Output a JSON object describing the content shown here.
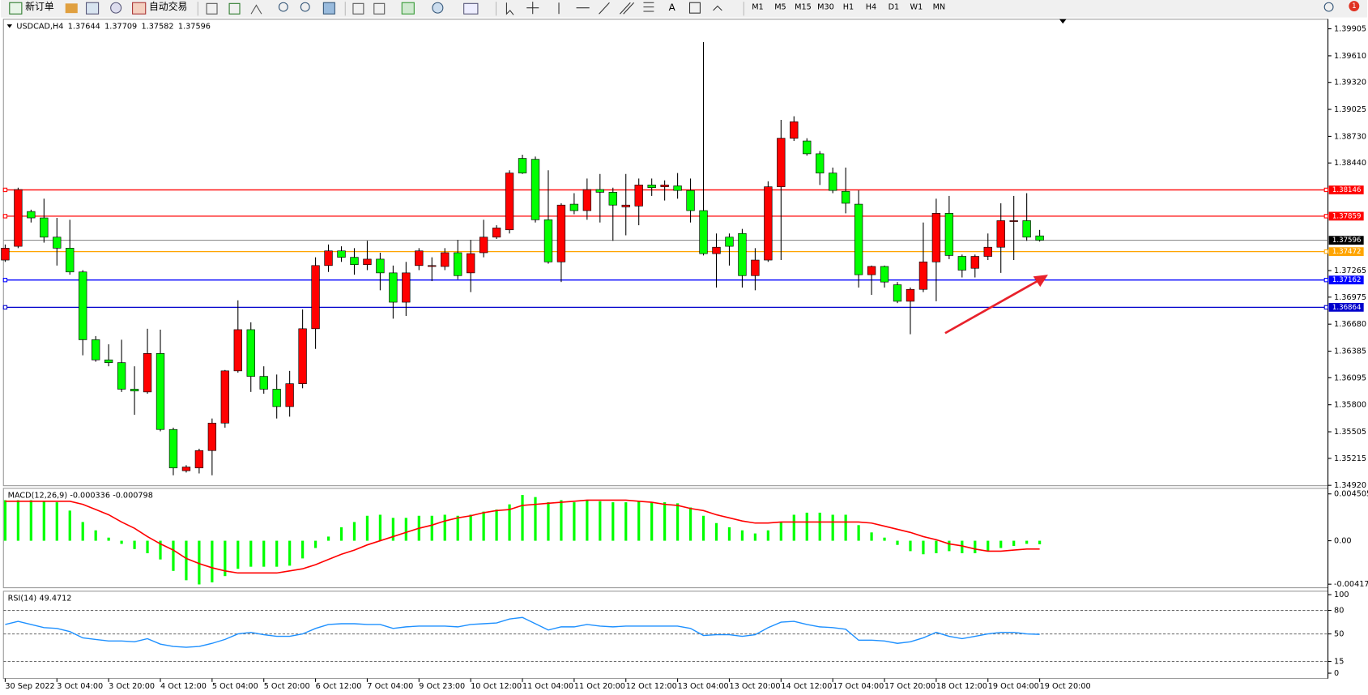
{
  "toolbar": {
    "buttons": [
      "新订单",
      "自动交易"
    ],
    "timeframes": [
      "M1",
      "M5",
      "M15",
      "M30",
      "H1",
      "H4",
      "D1",
      "W1",
      "MN"
    ],
    "alerts": 1
  },
  "chart_data": [
    {
      "type": "candlestick",
      "title": "USDCAD,H4",
      "up_color": "#ff0000",
      "down_color": "#00ff00",
      "categories": [
        "30 Sep 2022",
        null,
        null,
        null,
        "3 Oct 04:00",
        null,
        null,
        null,
        "3 Oct 20:00",
        null,
        null,
        null,
        "4 Oct 12:00",
        null,
        null,
        null,
        "5 Oct 04:00",
        null,
        null,
        null,
        "5 Oct 20:00",
        null,
        null,
        null,
        "6 Oct 12:00",
        null,
        null,
        null,
        "7 Oct 04:00",
        null,
        null,
        null,
        "9 Oct 23:00",
        null,
        null,
        null,
        "10 Oct 12:00",
        null,
        null,
        null,
        "11 Oct 04:00",
        null,
        null,
        null,
        "11 Oct 20:00",
        null,
        null,
        null,
        "12 Oct 12:00",
        null,
        null,
        null,
        "13 Oct 04:00",
        null,
        null,
        null,
        "13 Oct 20:00",
        null,
        null,
        null,
        "14 Oct 12:00",
        null,
        null,
        null,
        "17 Oct 04:00",
        null,
        null,
        null,
        "17 Oct 20:00",
        null,
        null,
        null,
        "18 Oct 12:00",
        null,
        null,
        null,
        "19 Oct 04:00",
        null,
        null,
        null,
        "19 Oct 20:00"
      ],
      "candles": [
        [
          1.3738,
          1.3755,
          1.3736,
          1.3751
        ],
        [
          1.3753,
          1.3817,
          1.3751,
          1.3815
        ],
        [
          1.3791,
          1.3793,
          1.3779,
          1.3784
        ],
        [
          1.3784,
          1.3805,
          1.3757,
          1.3763
        ],
        [
          1.3763,
          1.3784,
          1.3732,
          1.3751
        ],
        [
          1.3751,
          1.3782,
          1.3722,
          1.3725
        ],
        [
          1.3725,
          1.3727,
          1.3634,
          1.3651
        ],
        [
          1.3651,
          1.3655,
          1.3627,
          1.3629
        ],
        [
          1.3629,
          1.3646,
          1.3622,
          1.3626
        ],
        [
          1.3626,
          1.3651,
          1.3594,
          1.3597
        ],
        [
          1.3597,
          1.3622,
          1.3569,
          1.3595
        ],
        [
          1.3594,
          1.3663,
          1.3592,
          1.3636
        ],
        [
          1.3636,
          1.3662,
          1.3551,
          1.3553
        ],
        [
          1.3553,
          1.3555,
          1.3503,
          1.3511
        ],
        [
          1.3508,
          1.3514,
          1.3506,
          1.3512
        ],
        [
          1.3511,
          1.3532,
          1.3505,
          1.353
        ],
        [
          1.353,
          1.3565,
          1.3503,
          1.356
        ],
        [
          1.356,
          1.3618,
          1.3555,
          1.3617
        ],
        [
          1.3617,
          1.3694,
          1.3615,
          1.3662
        ],
        [
          1.3662,
          1.367,
          1.3594,
          1.3611
        ],
        [
          1.3611,
          1.3622,
          1.3592,
          1.3597
        ],
        [
          1.3597,
          1.3613,
          1.3565,
          1.3578
        ],
        [
          1.3578,
          1.3617,
          1.3567,
          1.3603
        ],
        [
          1.3603,
          1.3684,
          1.3598,
          1.3663
        ],
        [
          1.3663,
          1.3741,
          1.3641,
          1.3732
        ],
        [
          1.3732,
          1.3755,
          1.3725,
          1.3748
        ],
        [
          1.3748,
          1.3753,
          1.3736,
          1.3741
        ],
        [
          1.3741,
          1.3751,
          1.3722,
          1.3733
        ],
        [
          1.3733,
          1.3759,
          1.3727,
          1.3739
        ],
        [
          1.3739,
          1.3746,
          1.3705,
          1.3724
        ],
        [
          1.3724,
          1.3732,
          1.3674,
          1.3692
        ],
        [
          1.3692,
          1.3736,
          1.3677,
          1.3724
        ],
        [
          1.3732,
          1.3751,
          1.3727,
          1.3748
        ],
        [
          1.3731,
          1.3741,
          1.3715,
          1.3732
        ],
        [
          1.3731,
          1.3751,
          1.3727,
          1.3746
        ],
        [
          1.3746,
          1.376,
          1.3717,
          1.3721
        ],
        [
          1.3724,
          1.376,
          1.3703,
          1.3745
        ],
        [
          1.3746,
          1.3782,
          1.3741,
          1.3763
        ],
        [
          1.3763,
          1.3776,
          1.3761,
          1.3773
        ],
        [
          1.3771,
          1.3836,
          1.3767,
          1.3833
        ],
        [
          1.3849,
          1.3853,
          1.3832,
          1.3833
        ],
        [
          1.3848,
          1.3851,
          1.3779,
          1.3782
        ],
        [
          1.3782,
          1.3836,
          1.3734,
          1.3736
        ],
        [
          1.3736,
          1.38,
          1.3714,
          1.3798
        ],
        [
          1.3799,
          1.3811,
          1.3788,
          1.3792
        ],
        [
          1.3792,
          1.3827,
          1.3782,
          1.3815
        ],
        [
          1.3815,
          1.3832,
          1.3779,
          1.3812
        ],
        [
          1.3812,
          1.3817,
          1.3759,
          1.3798
        ],
        [
          1.3796,
          1.3832,
          1.3765,
          1.3798
        ],
        [
          1.3797,
          1.3827,
          1.3776,
          1.382
        ],
        [
          1.382,
          1.3827,
          1.3808,
          1.3817
        ],
        [
          1.3818,
          1.3825,
          1.3803,
          1.382
        ],
        [
          1.3819,
          1.3833,
          1.3805,
          1.3814
        ],
        [
          1.3814,
          1.3827,
          1.3779,
          1.3792
        ],
        [
          1.3792,
          1.3976,
          1.3743,
          1.3745
        ],
        [
          1.3745,
          1.3767,
          1.3708,
          1.3752
        ],
        [
          1.3763,
          1.3767,
          1.3732,
          1.3753
        ],
        [
          1.3767,
          1.3772,
          1.3708,
          1.3721
        ],
        [
          1.3721,
          1.3751,
          1.3705,
          1.3738
        ],
        [
          1.3738,
          1.3824,
          1.3736,
          1.3818
        ],
        [
          1.3818,
          1.3891,
          1.3738,
          1.3871
        ],
        [
          1.3871,
          1.3895,
          1.3868,
          1.3889
        ],
        [
          1.3868,
          1.3871,
          1.3852,
          1.3854
        ],
        [
          1.3854,
          1.3857,
          1.382,
          1.3833
        ],
        [
          1.3833,
          1.3839,
          1.3811,
          1.3814
        ],
        [
          1.3813,
          1.3839,
          1.3789,
          1.38
        ],
        [
          1.3799,
          1.3814,
          1.3708,
          1.3722
        ],
        [
          1.3722,
          1.3732,
          1.37,
          1.3731
        ],
        [
          1.3731,
          1.3732,
          1.3708,
          1.3714
        ],
        [
          1.3711,
          1.3714,
          1.3691,
          1.3693
        ],
        [
          1.3693,
          1.3708,
          1.3657,
          1.3706
        ],
        [
          1.3706,
          1.3779,
          1.3703,
          1.3736
        ],
        [
          1.3736,
          1.3805,
          1.3693,
          1.3789
        ],
        [
          1.3789,
          1.3808,
          1.3739,
          1.3743
        ],
        [
          1.3742,
          1.3744,
          1.3719,
          1.3727
        ],
        [
          1.3729,
          1.3744,
          1.3719,
          1.3742
        ],
        [
          1.3742,
          1.3767,
          1.3738,
          1.3752
        ],
        [
          1.3752,
          1.38,
          1.3724,
          1.3781
        ],
        [
          1.378,
          1.3808,
          1.3738,
          1.3781
        ],
        [
          1.3781,
          1.3811,
          1.3759,
          1.3763
        ],
        [
          1.37644,
          1.37709,
          1.37582,
          1.37596
        ]
      ],
      "levels": [
        {
          "value": 1.38146,
          "color": "#ff0000"
        },
        {
          "value": 1.37859,
          "color": "#ff0000"
        },
        {
          "value": 1.37472,
          "color": "#ffa500"
        },
        {
          "value": 1.37162,
          "color": "#0000ff"
        },
        {
          "value": 1.36864,
          "color": "#0000cc"
        }
      ],
      "ylim": [
        1.34916,
        1.4001
      ],
      "yticks": [
        1.39905,
        {
          "value": 1.3961,
          "label": "1.39610"
        },
        {
          "value": 1.3932,
          "label": "1.39320"
        },
        1.39025,
        {
          "value": 1.3873,
          "label": "1.38730"
        },
        {
          "value": 1.3844,
          "label": "1.38440"
        },
        1.37265,
        1.36975,
        {
          "value": 1.3668,
          "label": "1.36680"
        },
        1.36385,
        1.36095,
        {
          "value": 1.358,
          "label": "1.35800"
        },
        1.35505,
        1.35215,
        {
          "value": 1.3492,
          "label": "1.34920"
        }
      ]
    },
    {
      "type": "macd",
      "title": "MACD(12,26,9)",
      "color": "#00ff00",
      "signal_color": "#ff0000",
      "histogram": [
        0.0039,
        0.0039,
        0.0039,
        0.0038,
        0.0037,
        0.0029,
        0.0018,
        0.001,
        0.0003,
        -0.0003,
        -0.0008,
        -0.0012,
        -0.0018,
        -0.0029,
        -0.0038,
        -0.0042,
        -0.004,
        -0.0034,
        -0.0027,
        -0.0025,
        -0.0025,
        -0.0025,
        -0.0024,
        -0.0017,
        -0.0007,
        0.0004,
        0.0013,
        0.0018,
        0.0024,
        0.0025,
        0.0022,
        0.0022,
        0.0024,
        0.0024,
        0.0025,
        0.0024,
        0.0025,
        0.0028,
        0.003,
        0.0035,
        0.0044,
        0.0042,
        0.0037,
        0.0039,
        0.0037,
        0.0039,
        0.0038,
        0.0037,
        0.0037,
        0.0038,
        0.0037,
        0.0037,
        0.0036,
        0.0032,
        0.0024,
        0.0017,
        0.0013,
        0.001,
        0.0007,
        0.001,
        0.0018,
        0.0025,
        0.0027,
        0.0027,
        0.0025,
        0.0025,
        0.0015,
        0.0008,
        0.0003,
        -0.0004,
        -0.001,
        -0.0013,
        -0.0012,
        -0.001,
        -0.0012,
        -0.0012,
        -0.001,
        -0.0007,
        -0.0005,
        -0.0003,
        -0.000336
      ],
      "signal": [
        0.0038,
        0.0038,
        0.0038,
        0.0038,
        0.0038,
        0.0038,
        0.0035,
        0.003,
        0.0025,
        0.0018,
        0.0012,
        0.0004,
        -0.0003,
        -0.0009,
        -0.0017,
        -0.0022,
        -0.0026,
        -0.0029,
        -0.0031,
        -0.0031,
        -0.0031,
        -0.0031,
        -0.0029,
        -0.0027,
        -0.0023,
        -0.0018,
        -0.0013,
        -0.0009,
        -0.0004,
        0,
        0.0004,
        0.0008,
        0.0012,
        0.0015,
        0.0019,
        0.0022,
        0.0024,
        0.0027,
        0.0029,
        0.003,
        0.0034,
        0.0035,
        0.0036,
        0.0037,
        0.0038,
        0.0039,
        0.0039,
        0.0039,
        0.0039,
        0.0038,
        0.0037,
        0.0035,
        0.0034,
        0.0031,
        0.0029,
        0.0025,
        0.0022,
        0.0019,
        0.0017,
        0.0017,
        0.0018,
        0.0018,
        0.0018,
        0.0018,
        0.0018,
        0.0018,
        0.0018,
        0.0017,
        0.0014,
        0.0011,
        0.0008,
        0.0004,
        0.0001,
        -0.0003,
        -0.0005,
        -0.0008,
        -0.001,
        -0.001,
        -0.0009,
        -0.0008,
        -0.000798
      ],
      "ylim": [
        -0.00452,
        0.00504
      ],
      "yticks": [
        0.004505,
        {
          "value": 0,
          "label": "0.00"
        },
        -0.004177
      ]
    },
    {
      "type": "line",
      "title": "RSI(14)",
      "color": "#1e90ff",
      "values": [
        62,
        66,
        62,
        58,
        57,
        53,
        45,
        43,
        41,
        41,
        40,
        44,
        37,
        34,
        33,
        34,
        38,
        43,
        50,
        52,
        49,
        47,
        47,
        50,
        57,
        62,
        63,
        63,
        62,
        62,
        57,
        59,
        60,
        60,
        60,
        59,
        62,
        63,
        64,
        69,
        71,
        63,
        55,
        59,
        59,
        62,
        60,
        59,
        60,
        60,
        60,
        60,
        60,
        57,
        48,
        49,
        49,
        47,
        49,
        58,
        65,
        66,
        62,
        59,
        58,
        56,
        42,
        42,
        41,
        38,
        40,
        45,
        52,
        47,
        44,
        47,
        50,
        52,
        52,
        50,
        49.4712
      ],
      "levels": [
        80,
        50,
        15
      ],
      "ylim": [
        -6.7,
        104.4
      ],
      "yticks": [
        100,
        80,
        50,
        15,
        0
      ]
    }
  ]
}
